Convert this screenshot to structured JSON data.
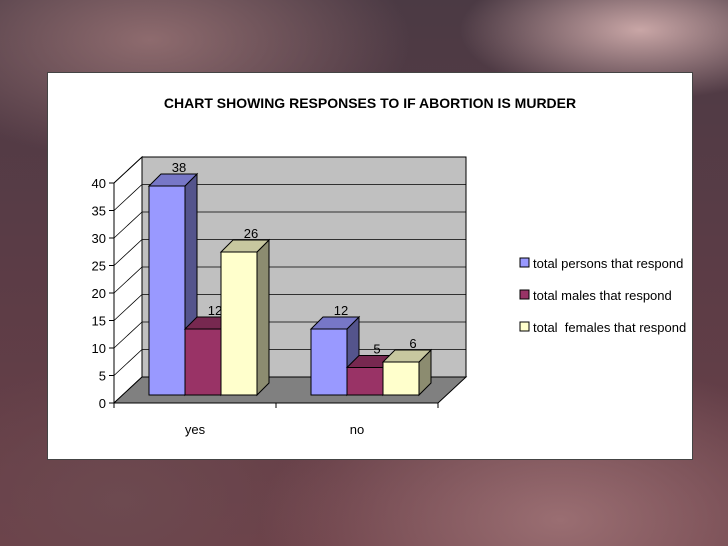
{
  "chart_data": {
    "type": "bar",
    "title": "CHART SHOWING RESPONSES TO IF ABORTION IS MURDER",
    "categories": [
      "yes",
      "no"
    ],
    "series": [
      {
        "name": "total persons that respond",
        "values": [
          38,
          12
        ],
        "color": "#9999ff"
      },
      {
        "name": "total males that respond",
        "values": [
          12,
          5
        ],
        "color": "#993366"
      },
      {
        "name": "total  females that respond",
        "values": [
          26,
          6
        ],
        "color": "#ffffcc"
      }
    ],
    "xlabel": "",
    "ylabel": "",
    "ylim": [
      0,
      40
    ],
    "yticks": [
      0,
      5,
      10,
      15,
      20,
      25,
      30,
      35,
      40
    ],
    "grid": true,
    "legend_position": "right",
    "style": "3d"
  }
}
